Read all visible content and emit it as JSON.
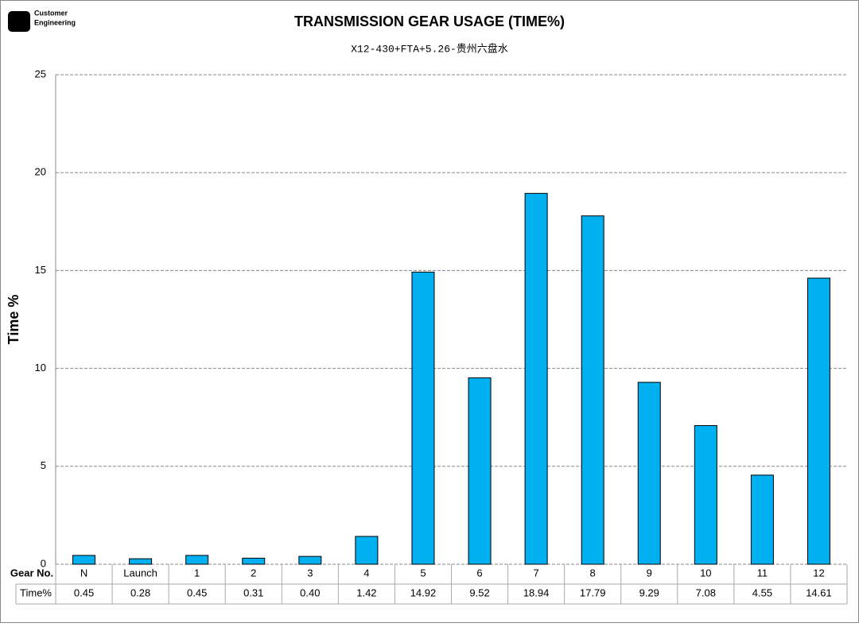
{
  "logo": {
    "lines": [
      "Customer",
      "Engineering"
    ]
  },
  "chart_data": {
    "type": "bar",
    "title": "TRANSMISSION GEAR USAGE (TIME%)",
    "subtitle": "X12-430+FTA+5.26-贵州六盘水",
    "y_label": "Time %",
    "table_headers": [
      "Gear No.",
      "Time%"
    ],
    "categories": [
      "N",
      "Launch",
      "1",
      "2",
      "3",
      "4",
      "5",
      "6",
      "7",
      "8",
      "9",
      "10",
      "11",
      "12"
    ],
    "values": [
      0.45,
      0.28,
      0.45,
      0.31,
      0.4,
      1.42,
      14.92,
      9.52,
      18.94,
      17.79,
      9.29,
      7.08,
      4.55,
      14.61
    ],
    "value_labels": [
      "0.45",
      "0.28",
      "0.45",
      "0.31",
      "0.40",
      "1.42",
      "14.92",
      "9.52",
      "18.94",
      "17.79",
      "9.29",
      "7.08",
      "4.55",
      "14.61"
    ],
    "color": "#00b0f0",
    "ylim": [
      0,
      25
    ],
    "yticks": [
      0,
      5,
      10,
      15,
      20,
      25
    ],
    "grid": true
  }
}
